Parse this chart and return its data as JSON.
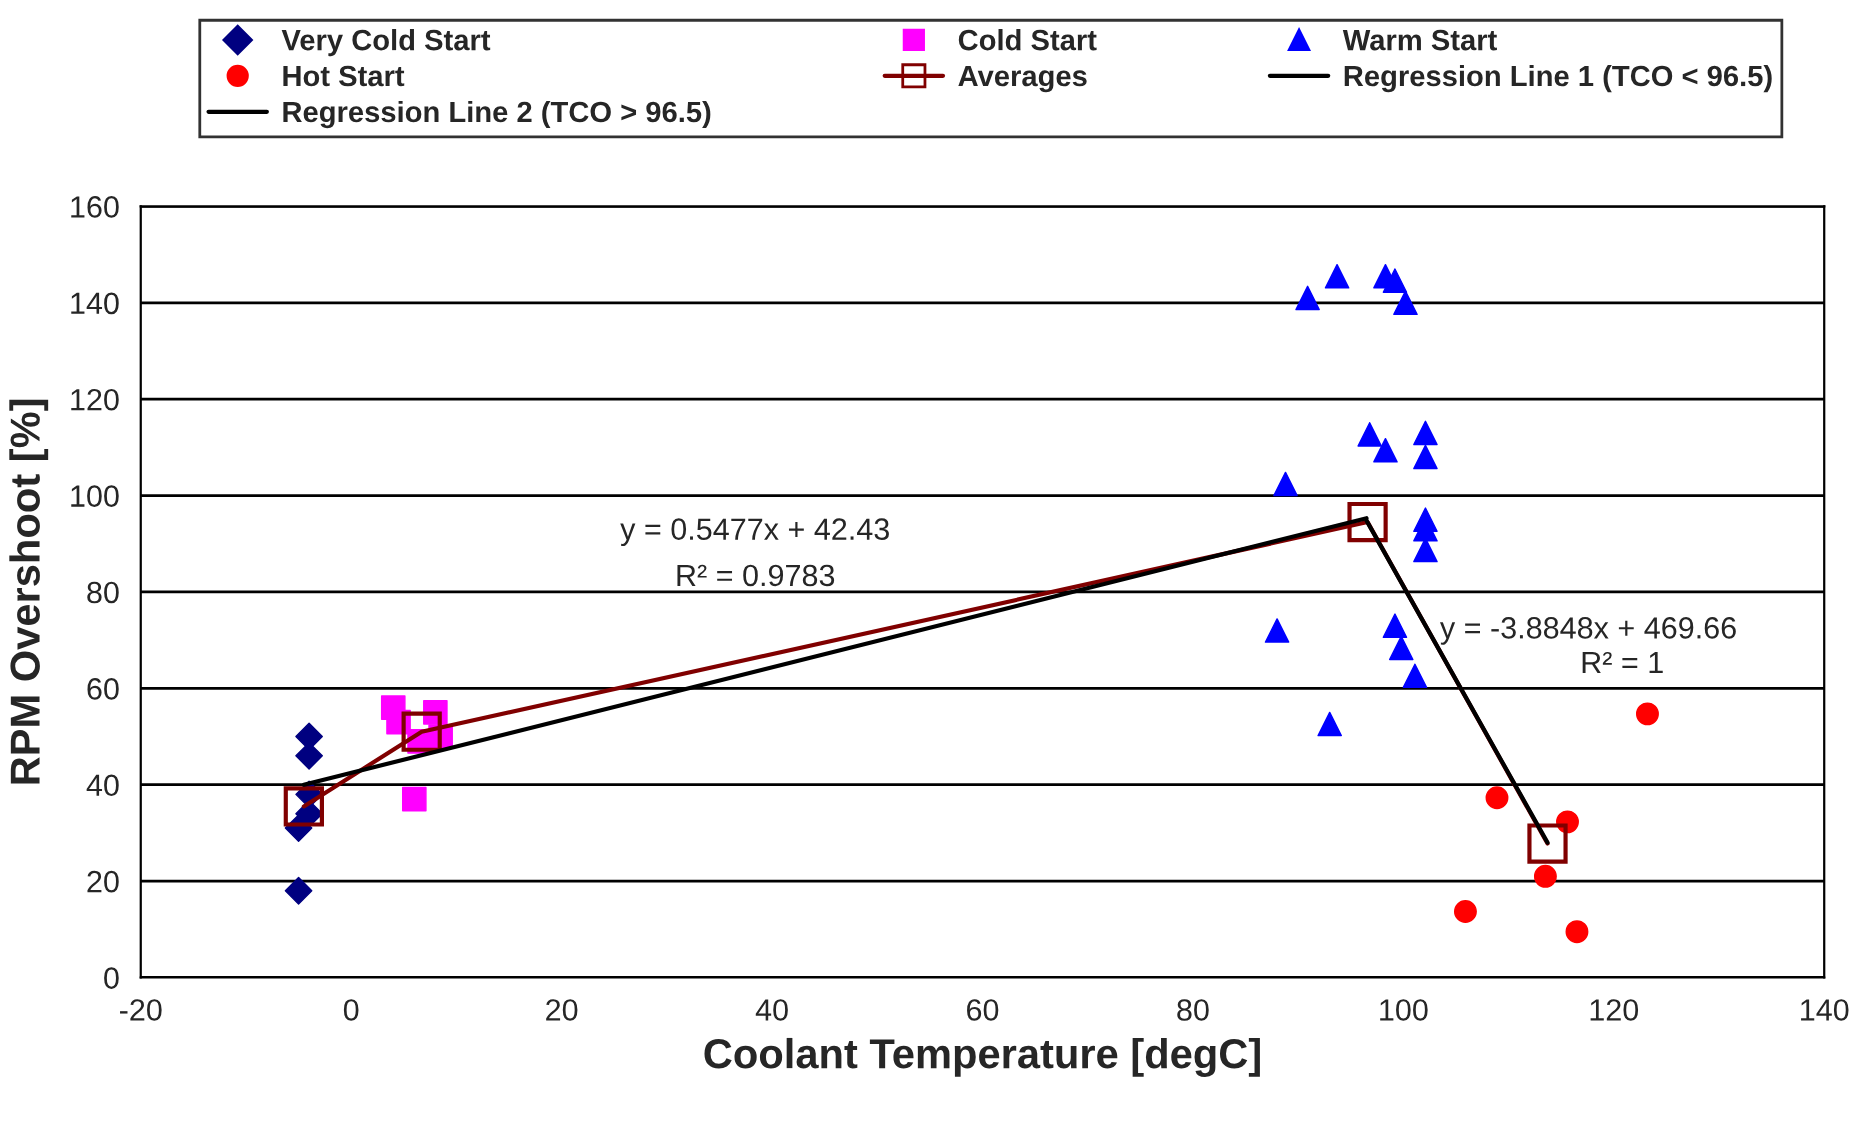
{
  "chart_data": {
    "type": "scatter",
    "xlabel": "Coolant Temperature [degC]",
    "ylabel": "RPM Overshoot [%]",
    "xlim": [
      -20,
      140
    ],
    "xticks": [
      -20,
      0,
      20,
      40,
      60,
      80,
      100,
      120,
      140
    ],
    "ylim": [
      0,
      160
    ],
    "yticks": [
      0,
      20,
      40,
      60,
      80,
      100,
      120,
      140,
      160
    ],
    "grid": "y",
    "legend": "top",
    "series": [
      {
        "name": "Very Cold Start",
        "marker": "diamond",
        "color": "#000080",
        "x": [
          -4,
          -4,
          -4,
          -4,
          -5,
          -5
        ],
        "values": [
          50,
          46,
          38,
          34,
          31,
          18
        ]
      },
      {
        "name": "Cold Start",
        "marker": "square",
        "color": "#ff00ff",
        "x": [
          4,
          4.5,
          8,
          8.5,
          6.5,
          6
        ],
        "values": [
          56,
          53,
          55,
          50,
          49,
          37
        ]
      },
      {
        "name": "Warm Start",
        "marker": "triangle",
        "color": "#0000ff",
        "x": [
          93.7,
          90.9,
          98.3,
          99.2,
          100.2,
          96.8,
          98.3,
          102.1,
          102.1,
          88.8,
          102.1,
          102.1,
          102.1,
          88,
          99.2,
          99.8,
          101.1,
          93
        ],
        "values": [
          145.5,
          141,
          145.5,
          144.6,
          140,
          112.7,
          109.4,
          113,
          108,
          102.4,
          95,
          93,
          88.7,
          72,
          73,
          68.4,
          62.6,
          52.6
        ]
      },
      {
        "name": "Hot Start",
        "marker": "circle",
        "color": "#ff0000",
        "x": [
          123.2,
          108.9,
          115.6,
          113.5,
          105.9,
          116.5
        ],
        "values": [
          54.7,
          37.3,
          32.3,
          21,
          13.7,
          9.5
        ]
      },
      {
        "name": "Averages",
        "type": "line",
        "marker": "square",
        "color": "#800000",
        "x": [
          -4.5,
          6.7,
          96.6,
          113.7
        ],
        "values": [
          35.5,
          51,
          94.5,
          27.8
        ]
      },
      {
        "name": "Regression Line 1 (TCO < 96.5)",
        "type": "line",
        "marker": "none",
        "color": "#000000",
        "x": [
          -4.5,
          96.5
        ],
        "values": [
          40.0,
          95.3
        ]
      },
      {
        "name": "Regression Line 2 (TCO > 96.5)",
        "type": "line",
        "marker": "none",
        "color": "#000000",
        "x": [
          96.5,
          113.7
        ],
        "values": [
          94.8,
          28.0
        ]
      }
    ],
    "annotations": [
      "y = 0.5477x + 42.43",
      "R² = 0.9783",
      "y = -3.8848x + 469.66",
      "R² = 1"
    ]
  }
}
